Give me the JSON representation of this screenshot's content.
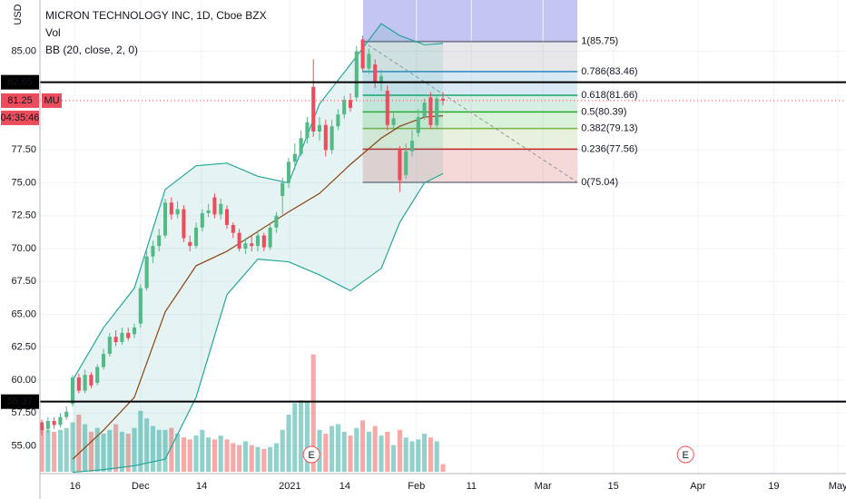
{
  "chart_data": {
    "type": "candlestick",
    "title": "MICRON TECHNOLOGY INC, 1D, Cboe BZX",
    "volume_label": "Vol",
    "indicator_label": "BB (20, close, 2, 0)",
    "currency": "USD",
    "ticker": "MU",
    "countdown": "04:35:46",
    "last_price": 81.25,
    "ylim": [
      52.9,
      88.9
    ],
    "yticks": [
      {
        "value": 85,
        "label": "85.00"
      },
      {
        "value": 77.5,
        "label": "77.50"
      },
      {
        "value": 75,
        "label": "75.00"
      },
      {
        "value": 72.5,
        "label": "72.50"
      },
      {
        "value": 70,
        "label": "70.00"
      },
      {
        "value": 67.5,
        "label": "67.50"
      },
      {
        "value": 65,
        "label": "65.00"
      },
      {
        "value": 62.5,
        "label": "62.50"
      },
      {
        "value": 60,
        "label": "60.00"
      },
      {
        "value": 57.5,
        "label": "57.50"
      },
      {
        "value": 55,
        "label": "55.00"
      }
    ],
    "xlim": [
      -0.3,
      130.3
    ],
    "xticks": [
      {
        "value": 5.4,
        "label": "16"
      },
      {
        "value": 16,
        "label": "Dec"
      },
      {
        "value": 25.9,
        "label": "14"
      },
      {
        "value": 40.2,
        "label": "2021"
      },
      {
        "value": 49.1,
        "label": "14"
      },
      {
        "value": 60.7,
        "label": "Feb"
      },
      {
        "value": 69.6,
        "label": "11"
      },
      {
        "value": 81.2,
        "label": "Mar"
      },
      {
        "value": 92.6,
        "label": "15"
      },
      {
        "value": 106.3,
        "label": "Apr"
      },
      {
        "value": 118.6,
        "label": "19"
      },
      {
        "value": 129,
        "label": "May"
      }
    ],
    "grid": true,
    "up_color": "#53b987",
    "down_color": "#eb4d5c",
    "open": [
      56.8,
      56.3,
      56.9,
      56.6,
      57.2,
      58.2,
      60.2,
      59.2,
      60.4,
      59.8,
      61,
      62,
      63.3,
      62.9,
      63.6,
      63.5,
      64.3,
      67,
      69.4,
      70.2,
      71,
      73.5,
      72.6,
      73,
      70.5,
      70.2,
      71.6,
      72.7,
      73.9,
      72.6,
      73,
      71.8,
      71.2,
      70,
      70.4,
      70.2,
      71,
      70.1,
      71.6,
      74,
      75,
      76.6,
      77.2,
      78.4,
      82.3,
      78.9,
      79.4,
      77.5,
      79.3,
      80.2,
      81.3,
      81.5,
      85.9,
      83.7,
      84,
      82.6,
      82,
      79.4,
      77.5,
      75.6,
      77.4,
      78.8,
      80,
      81.5,
      79.4,
      81.4
    ],
    "high": [
      57,
      57.2,
      57.2,
      57.5,
      58,
      60.4,
      60.5,
      60.8,
      60.6,
      61.2,
      62.4,
      63.6,
      63.8,
      64,
      64,
      64.3,
      67.3,
      69.8,
      70.6,
      71.5,
      73.8,
      73.9,
      73.6,
      73.3,
      71,
      72,
      73,
      73.4,
      74.2,
      73.8,
      73.3,
      72,
      71.5,
      70.8,
      71,
      71.4,
      71.2,
      72,
      72.8,
      75.4,
      76.9,
      78,
      79,
      80,
      84.4,
      80,
      79.8,
      79.8,
      80.6,
      81.6,
      81.8,
      85.4,
      86.2,
      85.2,
      84.4,
      83.6,
      82.4,
      80.3,
      77.8,
      78,
      79,
      80.6,
      81.4,
      81.9,
      81.7,
      81.9
    ],
    "low": [
      55.8,
      56,
      56.3,
      56.4,
      57,
      58,
      59,
      59,
      59.4,
      59.6,
      60.8,
      61.8,
      62.6,
      62.7,
      63,
      63.2,
      64,
      66.8,
      68.9,
      69.8,
      70.8,
      72.2,
      72.3,
      70.5,
      69.8,
      70,
      71.3,
      72.4,
      72.3,
      72.2,
      71.5,
      70.8,
      69.8,
      69.6,
      69.8,
      69.8,
      69.8,
      69.9,
      71.2,
      72.6,
      74.6,
      76,
      77,
      78,
      78.5,
      78.2,
      77,
      77.2,
      79,
      79.9,
      80.4,
      81.2,
      83.4,
      83.3,
      82.2,
      82,
      79,
      79,
      74.3,
      75.3,
      77,
      78.5,
      79.8,
      79.1,
      79.2,
      80.9
    ],
    "close": [
      56.2,
      56.9,
      56.6,
      57.2,
      57.6,
      60.2,
      59.2,
      60.4,
      59.6,
      61,
      62,
      63.3,
      62.9,
      63.6,
      63.2,
      64,
      67,
      69.4,
      70.2,
      71,
      73.5,
      72.6,
      73,
      70.8,
      70.2,
      71.6,
      72.7,
      72.9,
      72.6,
      73.4,
      71.8,
      71.2,
      70,
      70.4,
      70.2,
      71,
      70.1,
      71.6,
      72.5,
      75,
      76.6,
      77.2,
      78.4,
      79.6,
      78.9,
      79.4,
      77.5,
      79.3,
      80.2,
      81.3,
      80.7,
      85,
      83.7,
      84.8,
      82.6,
      83.1,
      79.4,
      79.9,
      75.2,
      77.4,
      78.2,
      80,
      81.1,
      79.4,
      81.4,
      81.25
    ],
    "volume": [
      24,
      22,
      21,
      22,
      23,
      26,
      30,
      25,
      21,
      23,
      20,
      22,
      25,
      21,
      20,
      23,
      32,
      28,
      24,
      22,
      22,
      23,
      20,
      18,
      17,
      19,
      22,
      18,
      17,
      19,
      17,
      15,
      14,
      16,
      14,
      13,
      12,
      13,
      15,
      22,
      30,
      36,
      37.5,
      37,
      61.6,
      22,
      20,
      24,
      25,
      21,
      19,
      23,
      27,
      21,
      24,
      19,
      21,
      14,
      22,
      18,
      16,
      17,
      20,
      18,
      16,
      4
    ],
    "bollinger": {
      "x": [
        5,
        10,
        15,
        20,
        25,
        30,
        35,
        40,
        45,
        50,
        55,
        58,
        62,
        65
      ],
      "upper": [
        60,
        64,
        67,
        74.5,
        76.3,
        76.5,
        75.5,
        75,
        81,
        84,
        87.1,
        86.2,
        85.5,
        85.6
      ],
      "middle": [
        54,
        56.2,
        58.7,
        65.2,
        68.7,
        69.8,
        71.3,
        72.8,
        74.2,
        76.4,
        78.4,
        79.3,
        80,
        80.1
      ],
      "lower": [
        53,
        53.2,
        53.5,
        54,
        58.7,
        66.5,
        69.2,
        69,
        68,
        66.8,
        68.5,
        72,
        75,
        75.7
      ],
      "band_color": "#26a69a",
      "middle_color": "#8b4513"
    },
    "hlines": [
      82.65,
      58.37
    ],
    "fib": {
      "x": [
        52,
        86.8
      ],
      "levels": [
        {
          "value": 85.75,
          "label": "1(85.75)",
          "color": "#787b86"
        },
        {
          "value": 83.46,
          "label": "0.786(83.46)",
          "color": "#2e86c1"
        },
        {
          "value": 81.66,
          "label": "0.618(81.66)",
          "color": "#1aa36b"
        },
        {
          "value": 80.39,
          "label": "0.5(80.39)",
          "color": "#2bab2b"
        },
        {
          "value": 79.13,
          "label": "0.382(79.13)",
          "color": "#7cb342"
        },
        {
          "value": 77.56,
          "label": "0.236(77.56)",
          "color": "#c62828"
        },
        {
          "value": 75.04,
          "label": "0(75.04)",
          "color": "#787b86"
        }
      ]
    },
    "earnings": [
      {
        "x": 43.7,
        "label": "E"
      },
      {
        "x": 104.3,
        "label": "E"
      }
    ]
  }
}
